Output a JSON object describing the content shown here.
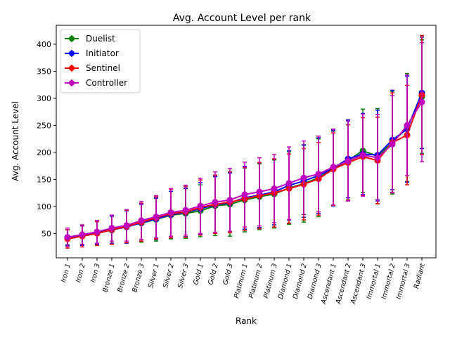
{
  "chart_data": {
    "type": "line",
    "title": "Avg. Account Level per rank",
    "xlabel": "Rank",
    "ylabel": "Avg. Account Level",
    "ylim": [
      5,
      435
    ],
    "yticks": [
      50,
      100,
      150,
      200,
      250,
      300,
      350,
      400
    ],
    "grid": false,
    "legend_position": "top-left",
    "error_bars": true,
    "categories": [
      "Iron 1",
      "Iron 2",
      "Iron 3",
      "Bronze 1",
      "Bronze 2",
      "Bronze 3",
      "Silver 1",
      "Silver 2",
      "Silver 3",
      "Gold 1",
      "Gold 2",
      "Gold 3",
      "Platinum 1",
      "Platinum 2",
      "Platinum 3",
      "Diamond 1",
      "Diamond 2",
      "Diamond 3",
      "Ascendant 1",
      "Ascendant 2",
      "Ascendant 3",
      "Immortal 1",
      "Immortal 2",
      "Immortal 3",
      "Radiant"
    ],
    "series": [
      {
        "name": "Duelist",
        "color": "#008000",
        "values": [
          42,
          47,
          51,
          56,
          63,
          69,
          76,
          84,
          87,
          92,
          101,
          104,
          112,
          118,
          123,
          134,
          142,
          153,
          170,
          185,
          203,
          193,
          218,
          246,
          303
        ],
        "errors": [
          15,
          18,
          22,
          26,
          30,
          35,
          40,
          44,
          46,
          48,
          55,
          59,
          59,
          61,
          63,
          67,
          71,
          72,
          69,
          73,
          77,
          88,
          95,
          100,
          105
        ]
      },
      {
        "name": "Initiator",
        "color": "#0000ff",
        "values": [
          43,
          46,
          51,
          57,
          62,
          70,
          77,
          85,
          89,
          96,
          103,
          107,
          116,
          121,
          127,
          139,
          147,
          157,
          171,
          188,
          197,
          195,
          223,
          243,
          310
        ],
        "errors": [
          14,
          18,
          21,
          25,
          30,
          34,
          38,
          43,
          45,
          48,
          52,
          55,
          58,
          60,
          61,
          64,
          67,
          70,
          70,
          72,
          75,
          83,
          92,
          98,
          103
        ]
      },
      {
        "name": "Sentinel",
        "color": "#ff0000",
        "values": [
          40,
          45,
          50,
          57,
          63,
          71,
          79,
          87,
          90,
          98,
          104,
          108,
          114,
          120,
          125,
          133,
          141,
          151,
          169,
          181,
          192,
          185,
          218,
          232,
          306
        ],
        "errors": [
          17,
          20,
          22,
          27,
          30,
          35,
          39,
          45,
          47,
          51,
          54,
          56,
          58,
          61,
          63,
          64,
          66,
          67,
          67,
          70,
          72,
          80,
          92,
          92,
          110
        ]
      },
      {
        "name": "Controller",
        "color": "#bf00bf",
        "values": [
          43,
          48,
          53,
          60,
          65,
          74,
          81,
          89,
          93,
          101,
          108,
          112,
          122,
          127,
          133,
          143,
          153,
          160,
          173,
          184,
          195,
          190,
          215,
          250,
          293
        ],
        "errors": [
          17,
          18,
          21,
          24,
          29,
          35,
          39,
          44,
          46,
          51,
          56,
          58,
          60,
          63,
          63,
          67,
          68,
          70,
          70,
          74,
          76,
          80,
          90,
          93,
          110
        ]
      }
    ]
  }
}
